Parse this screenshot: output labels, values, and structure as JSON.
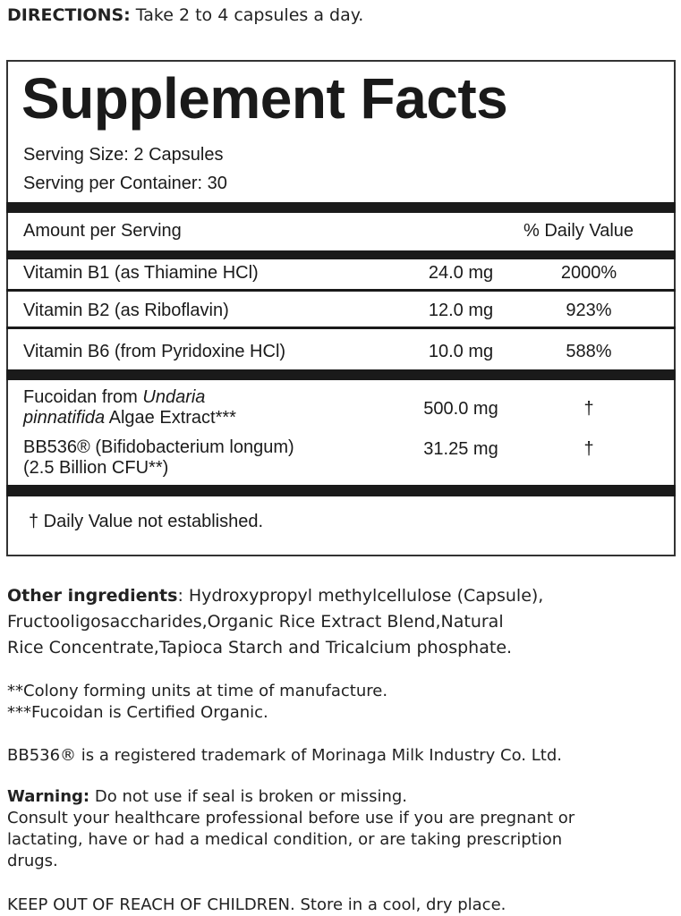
{
  "directions": {
    "label": "DIRECTIONS:",
    "text": " Take 2 to 4 capsules a day."
  },
  "facts": {
    "title": "Supplement Facts",
    "serving_size": "Serving Size: 2 Capsules",
    "servings_per_container": "Serving per Container: 30",
    "amount_header": "Amount per Serving",
    "dv_header": "% Daily Value",
    "vitamins": [
      {
        "name": "Vitamin B1 (as Thiamine HCl)",
        "amount": "24.0 mg",
        "dv": "2000%"
      },
      {
        "name": "Vitamin B2 (as Riboflavin)",
        "amount": "12.0 mg",
        "dv": "923%"
      },
      {
        "name": "Vitamin B6 (from Pyridoxine HCl)",
        "amount": "10.0 mg",
        "dv": "588%"
      }
    ],
    "fucoidan": {
      "line1_a": "Fucoidan from ",
      "line1_b": "Undaria",
      "line2_a": "pinnatifida",
      "line2_b": " Algae Extract***",
      "amount": "500.0 mg",
      "dv": "†"
    },
    "bb536": {
      "line1": "BB536® (Bifidobacterium longum)",
      "line2": "(2.5 Billion CFU**)",
      "amount": "31.25 mg",
      "dv": "†"
    },
    "footnote": "† Daily Value not established."
  },
  "other": {
    "label": "Other ingredients",
    "line1": ": Hydroxypropyl methylcellulose (Capsule),",
    "line2": "Fructooligosaccharides,Organic Rice Extract Blend,Natural",
    "line3": "Rice Concentrate,Tapioca Starch and Tricalcium phosphate."
  },
  "notes": {
    "cfu": "**Colony forming units at time of manufacture.",
    "organic": "***Fucoidan is Certified Organic.",
    "trademark": "BB536® is a registered trademark of Morinaga Milk Industry Co. Ltd."
  },
  "warning": {
    "label": "Warning:",
    "line1": " Do not use if seal is broken or missing.",
    "line2": "Consult your healthcare professional before use if you are pregnant or",
    "line3": "lactating, have or had a medical condition, or are taking prescription",
    "line4": "drugs."
  },
  "keep_out": "KEEP OUT OF REACH OF CHILDREN. Store in a cool, dry place."
}
